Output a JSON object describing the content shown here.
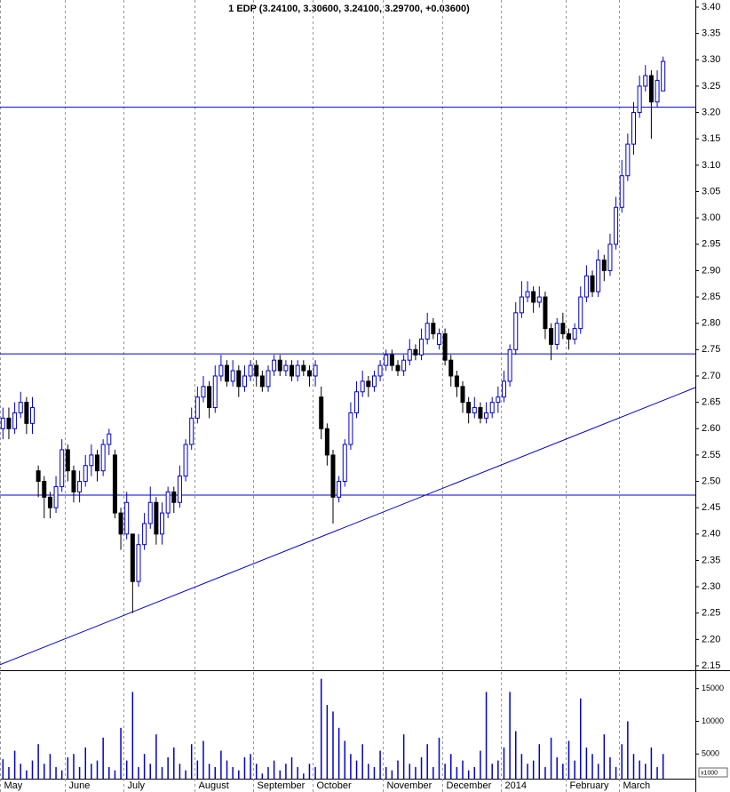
{
  "chart_data": {
    "type": "candlestick",
    "title": "1 EDP (3.24100, 3.30600, 3.24100, 3.29700, +0.03600)",
    "categories": [
      "May",
      null,
      null,
      null,
      null,
      null,
      null,
      null,
      null,
      null,
      null,
      "June",
      null,
      null,
      null,
      null,
      null,
      null,
      null,
      null,
      null,
      "July",
      null,
      null,
      null,
      null,
      null,
      null,
      null,
      null,
      null,
      null,
      null,
      "August",
      null,
      null,
      null,
      null,
      null,
      null,
      null,
      null,
      null,
      "September",
      null,
      null,
      null,
      null,
      null,
      null,
      null,
      null,
      null,
      "October",
      null,
      null,
      null,
      null,
      null,
      null,
      null,
      null,
      null,
      null,
      null,
      "November",
      null,
      null,
      null,
      null,
      null,
      null,
      null,
      null,
      null,
      "December",
      null,
      null,
      null,
      null,
      null,
      null,
      null,
      null,
      null,
      "2014",
      null,
      null,
      null,
      null,
      null,
      null,
      null,
      null,
      null,
      null,
      "February",
      null,
      null,
      null,
      null,
      null,
      null,
      null,
      null,
      "March",
      null,
      null,
      null,
      null,
      null,
      null,
      null
    ],
    "open": [
      2.6,
      2.62,
      2.6,
      2.63,
      2.65,
      2.61,
      2.52,
      2.5,
      2.47,
      2.45,
      2.49,
      2.56,
      2.52,
      2.48,
      2.5,
      2.53,
      2.55,
      2.52,
      2.57,
      2.55,
      2.44,
      2.4,
      2.4,
      2.31,
      2.38,
      2.42,
      2.46,
      2.4,
      2.44,
      2.48,
      2.46,
      2.51,
      2.57,
      2.62,
      2.66,
      2.68,
      2.64,
      2.7,
      2.72,
      2.69,
      2.71,
      2.68,
      2.7,
      2.72,
      2.7,
      2.68,
      2.71,
      2.73,
      2.71,
      2.72,
      2.7,
      2.72,
      2.71,
      2.7,
      2.66,
      2.6,
      2.55,
      2.47,
      2.5,
      2.57,
      2.63,
      2.67,
      2.69,
      2.68,
      2.7,
      2.72,
      2.74,
      2.72,
      2.71,
      2.73,
      2.75,
      2.74,
      2.77,
      2.8,
      2.76,
      2.78,
      2.73,
      2.7,
      2.68,
      2.65,
      2.63,
      2.64,
      2.62,
      2.63,
      2.65,
      2.66,
      2.69,
      2.75,
      2.82,
      2.85,
      2.86,
      2.84,
      2.85,
      2.79,
      2.76,
      2.8,
      2.78,
      2.77,
      2.79,
      2.85,
      2.89,
      2.86,
      2.92,
      2.9,
      2.95,
      3.02,
      3.08,
      3.14,
      3.2,
      3.25,
      3.27,
      3.22,
      3.241
    ],
    "high": [
      2.64,
      2.64,
      2.65,
      2.67,
      2.66,
      2.66,
      2.53,
      2.51,
      2.48,
      2.51,
      2.58,
      2.57,
      2.53,
      2.52,
      2.55,
      2.57,
      2.56,
      2.58,
      2.6,
      2.56,
      2.45,
      2.48,
      2.4,
      2.4,
      2.44,
      2.49,
      2.47,
      2.46,
      2.49,
      2.49,
      2.53,
      2.58,
      2.64,
      2.68,
      2.7,
      2.69,
      2.72,
      2.74,
      2.73,
      2.73,
      2.72,
      2.72,
      2.73,
      2.73,
      2.71,
      2.72,
      2.74,
      2.74,
      2.73,
      2.73,
      2.73,
      2.73,
      2.72,
      2.73,
      2.68,
      2.61,
      2.56,
      2.51,
      2.58,
      2.65,
      2.69,
      2.71,
      2.7,
      2.71,
      2.73,
      2.75,
      2.75,
      2.73,
      2.74,
      2.77,
      2.76,
      2.79,
      2.82,
      2.81,
      2.79,
      2.79,
      2.74,
      2.71,
      2.69,
      2.66,
      2.66,
      2.65,
      2.65,
      2.66,
      2.68,
      2.71,
      2.76,
      2.84,
      2.88,
      2.88,
      2.87,
      2.87,
      2.86,
      2.8,
      2.81,
      2.82,
      2.79,
      2.8,
      2.87,
      2.91,
      2.9,
      2.94,
      2.93,
      2.97,
      3.04,
      3.11,
      3.16,
      3.22,
      3.27,
      3.29,
      3.28,
      3.28,
      3.306
    ],
    "low": [
      2.58,
      2.58,
      2.59,
      2.62,
      2.59,
      2.59,
      2.47,
      2.43,
      2.43,
      2.44,
      2.48,
      2.5,
      2.46,
      2.46,
      2.49,
      2.51,
      2.5,
      2.51,
      2.55,
      2.43,
      2.37,
      2.39,
      2.25,
      2.3,
      2.37,
      2.41,
      2.38,
      2.38,
      2.43,
      2.44,
      2.45,
      2.5,
      2.56,
      2.61,
      2.65,
      2.62,
      2.63,
      2.69,
      2.68,
      2.68,
      2.66,
      2.67,
      2.69,
      2.68,
      2.67,
      2.67,
      2.7,
      2.7,
      2.7,
      2.69,
      2.69,
      2.7,
      2.68,
      2.68,
      2.58,
      2.53,
      2.42,
      2.46,
      2.49,
      2.56,
      2.62,
      2.66,
      2.66,
      2.67,
      2.69,
      2.71,
      2.71,
      2.7,
      2.7,
      2.72,
      2.73,
      2.73,
      2.76,
      2.77,
      2.75,
      2.72,
      2.68,
      2.66,
      2.63,
      2.61,
      2.62,
      2.61,
      2.61,
      2.62,
      2.63,
      2.65,
      2.68,
      2.74,
      2.81,
      2.84,
      2.82,
      2.83,
      2.77,
      2.73,
      2.75,
      2.77,
      2.75,
      2.76,
      2.78,
      2.84,
      2.85,
      2.85,
      2.88,
      2.89,
      2.94,
      3.01,
      3.07,
      3.12,
      3.19,
      3.24,
      3.15,
      3.21,
      3.241
    ],
    "close": [
      2.62,
      2.6,
      2.63,
      2.65,
      2.61,
      2.64,
      2.5,
      2.47,
      2.45,
      2.49,
      2.56,
      2.52,
      2.48,
      2.5,
      2.53,
      2.55,
      2.52,
      2.57,
      2.59,
      2.44,
      2.4,
      2.46,
      2.31,
      2.38,
      2.42,
      2.46,
      2.4,
      2.44,
      2.48,
      2.46,
      2.51,
      2.57,
      2.62,
      2.66,
      2.68,
      2.64,
      2.7,
      2.72,
      2.69,
      2.71,
      2.68,
      2.7,
      2.72,
      2.7,
      2.68,
      2.71,
      2.73,
      2.71,
      2.72,
      2.7,
      2.72,
      2.71,
      2.7,
      2.72,
      2.6,
      2.55,
      2.47,
      2.5,
      2.57,
      2.63,
      2.67,
      2.69,
      2.68,
      2.7,
      2.72,
      2.74,
      2.72,
      2.71,
      2.73,
      2.75,
      2.74,
      2.77,
      2.8,
      2.78,
      2.78,
      2.73,
      2.7,
      2.68,
      2.65,
      2.63,
      2.64,
      2.62,
      2.63,
      2.65,
      2.66,
      2.69,
      2.75,
      2.82,
      2.85,
      2.86,
      2.84,
      2.85,
      2.79,
      2.76,
      2.8,
      2.78,
      2.77,
      2.79,
      2.85,
      2.89,
      2.86,
      2.92,
      2.9,
      2.95,
      3.02,
      3.08,
      3.14,
      3.2,
      3.25,
      3.27,
      3.22,
      3.261,
      3.297
    ],
    "volume": [
      4200,
      3000,
      5500,
      3500,
      2500,
      4000,
      6500,
      3500,
      5000,
      3000,
      2500,
      4500,
      5000,
      3000,
      6000,
      3500,
      4000,
      7500,
      3000,
      2500,
      9000,
      4000,
      14500,
      3000,
      5000,
      3500,
      8000,
      3000,
      4500,
      6000,
      3500,
      2500,
      6500,
      4000,
      7000,
      3500,
      3000,
      5500,
      4000,
      3000,
      2500,
      4500,
      5000,
      3500,
      2000,
      3000,
      4000,
      2500,
      3500,
      4500,
      3000,
      2000,
      3500,
      3000,
      16500,
      12500,
      11500,
      9000,
      7000,
      5000,
      4000,
      6500,
      3500,
      3000,
      5500,
      3000,
      2500,
      4000,
      8000,
      3500,
      3000,
      4500,
      6500,
      3000,
      7500,
      3500,
      5000,
      3000,
      4000,
      2500,
      3000,
      5500,
      14500,
      3500,
      4000,
      6000,
      14500,
      8500,
      5000,
      3500,
      4000,
      6500,
      3000,
      7500,
      4500,
      3500,
      7000,
      4000,
      13500,
      6000,
      5000,
      3500,
      8000,
      4500,
      3000,
      6500,
      10000,
      5000,
      4000,
      3500,
      6000,
      3000,
      5000
    ],
    "up_color": "#0000cc",
    "down_color": "#000000",
    "volume_color": "#0000cc",
    "line_color": "#0000cc",
    "ylim": [
      2.1416,
      3.4135
    ],
    "yticks": [
      2.15,
      {
        "value": 2.2,
        "label": "2.20"
      },
      2.25,
      {
        "value": 2.3,
        "label": "2.30"
      },
      2.35,
      {
        "value": 2.4,
        "label": "2.40"
      },
      2.45,
      {
        "value": 2.5,
        "label": "2.50"
      },
      2.55,
      {
        "value": 2.6,
        "label": "2.60"
      },
      2.65,
      {
        "value": 2.7,
        "label": "2.70"
      },
      2.75,
      {
        "value": 2.8,
        "label": "2.80"
      },
      2.85,
      {
        "value": 2.9,
        "label": "2.90"
      },
      2.95,
      {
        "value": 3.0,
        "label": "3.00"
      },
      3.05,
      {
        "value": 3.1,
        "label": "3.10"
      },
      3.15,
      {
        "value": 3.2,
        "label": "3.20"
      },
      3.25,
      {
        "value": 3.3,
        "label": "3.30"
      },
      3.35,
      {
        "value": 3.4,
        "label": "3.40"
      }
    ],
    "hlines": [
      3.21,
      2.742,
      2.474
    ],
    "trendline": [
      2.152,
      2.678
    ],
    "volume_lim": [
      0,
      17000
    ],
    "volume_ticks": [
      5000,
      10000,
      15000
    ],
    "volume_unit": "x1000"
  }
}
